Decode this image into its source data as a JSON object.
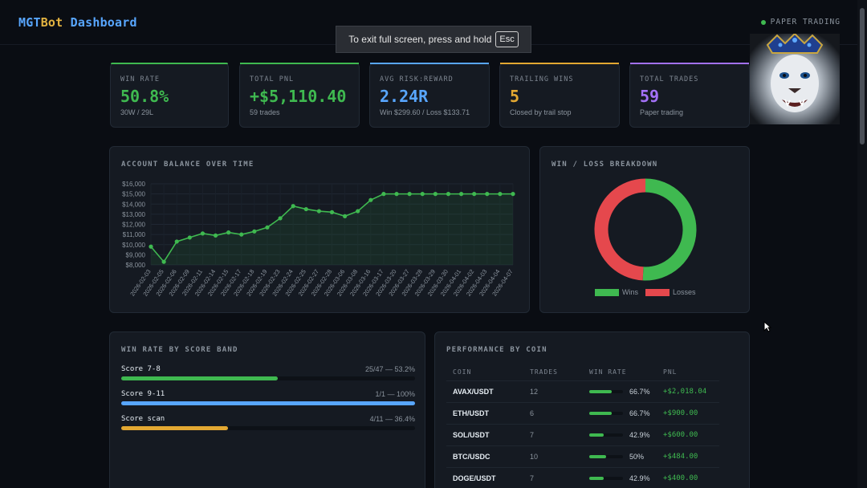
{
  "header": {
    "brand_part1": "MGT",
    "brand_part2": "Bot",
    "brand_part3": "Dashboard",
    "mode_label": "PAPER TRADING"
  },
  "toast": {
    "text": "To exit full screen, press and hold",
    "key": "Esc"
  },
  "stats": [
    {
      "label": "WIN RATE",
      "value": "50.8%",
      "sub": "30W / 29L",
      "color": "#3fb950",
      "accent": "#3fb950"
    },
    {
      "label": "TOTAL PNL",
      "value": "+$5,110.40",
      "sub": "59 trades",
      "color": "#3fb950",
      "accent": "#3fb950"
    },
    {
      "label": "AVG RISK:REWARD",
      "value": "2.24R",
      "sub": "Win $299.60 / Loss $133.71",
      "color": "#58a6ff",
      "accent": "#58a6ff"
    },
    {
      "label": "TRAILING WINS",
      "value": "5",
      "sub": "Closed by trail stop",
      "color": "#e3a832",
      "accent": "#e3a832"
    },
    {
      "label": "TOTAL TRADES",
      "value": "59",
      "sub": "Paper trading",
      "color": "#a371f7",
      "accent": "#a371f7"
    }
  ],
  "balance_panel": {
    "title": "ACCOUNT BALANCE OVER TIME"
  },
  "winloss_panel": {
    "title": "WIN / LOSS BREAKDOWN",
    "legend_wins": "Wins",
    "legend_losses": "Losses",
    "wins": 30,
    "losses": 29
  },
  "score_panel": {
    "title": "WIN RATE BY SCORE BAND",
    "bands": [
      {
        "name": "Score 7-8",
        "stat": "25/47 — 53.2%",
        "pct": 53.2,
        "color": "#3fb950"
      },
      {
        "name": "Score 9-11",
        "stat": "1/1 — 100%",
        "pct": 100,
        "color": "#58a6ff"
      },
      {
        "name": "Score scan",
        "stat": "4/11 — 36.4%",
        "pct": 36.4,
        "color": "#e3a832"
      }
    ]
  },
  "coin_panel": {
    "title": "PERFORMANCE BY COIN",
    "headers": [
      "COIN",
      "TRADES",
      "WIN RATE",
      "PNL"
    ],
    "rows": [
      {
        "coin": "AVAX/USDT",
        "trades": "12",
        "win_rate": "66.7%",
        "pct": 66.7,
        "pnl": "+$2,018.04"
      },
      {
        "coin": "ETH/USDT",
        "trades": "6",
        "win_rate": "66.7%",
        "pct": 66.7,
        "pnl": "+$900.00"
      },
      {
        "coin": "SOL/USDT",
        "trades": "7",
        "win_rate": "42.9%",
        "pct": 42.9,
        "pnl": "+$600.00"
      },
      {
        "coin": "BTC/USDC",
        "trades": "10",
        "win_rate": "50%",
        "pct": 50,
        "pnl": "+$484.00"
      },
      {
        "coin": "DOGE/USDT",
        "trades": "7",
        "win_rate": "42.9%",
        "pct": 42.9,
        "pnl": "+$400.00"
      }
    ]
  },
  "chart_data": {
    "type": "line",
    "title": "ACCOUNT BALANCE OVER TIME",
    "xlabel": "",
    "ylabel": "",
    "ylim": [
      8000,
      16000
    ],
    "y_ticks": [
      "$8,000",
      "$9,000",
      "$10,000",
      "$11,000",
      "$12,000",
      "$13,000",
      "$14,000",
      "$15,000",
      "$16,000"
    ],
    "x": [
      "2026-02-03",
      "2026-02-05",
      "2026-02-06",
      "2026-02-09",
      "2026-02-11",
      "2026-02-14",
      "2026-02-15",
      "2026-02-17",
      "2026-02-18",
      "2026-02-19",
      "2026-02-23",
      "2026-02-24",
      "2026-02-25",
      "2026-02-27",
      "2026-02-28",
      "2026-03-06",
      "2026-03-08",
      "2026-03-16",
      "2026-03-17",
      "2026-03-20",
      "2026-03-27",
      "2026-03-28",
      "2026-03-29",
      "2026-03-30",
      "2026-04-01",
      "2026-04-02",
      "2026-04-03",
      "2026-04-04",
      "2026-04-07"
    ],
    "series": [
      {
        "values": [
          9800,
          8300,
          10300,
          10700,
          11100,
          10900,
          11200,
          11000,
          11300,
          11700,
          12600,
          13800,
          13500,
          13300,
          13200,
          12800,
          13300,
          14400,
          15000,
          15000,
          15000,
          15000,
          15000,
          15000,
          15000,
          15000,
          15000,
          15000,
          15000
        ],
        "color": "#3fb950"
      }
    ]
  }
}
